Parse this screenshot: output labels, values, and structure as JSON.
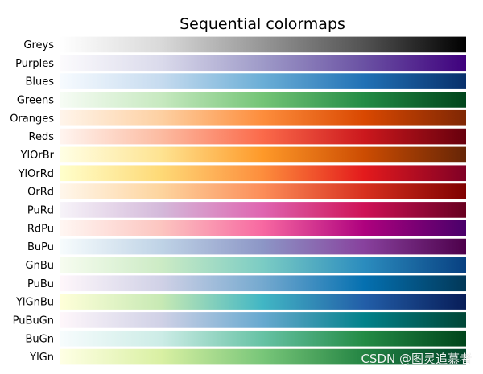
{
  "chart_data": {
    "type": "heatmap",
    "title": "Sequential colormaps",
    "xlabel": "",
    "ylabel": "",
    "grid": false,
    "rows": [
      {
        "name": "Greys",
        "colors": [
          "#ffffff",
          "#d9d9d9",
          "#969696",
          "#525252",
          "#000000"
        ]
      },
      {
        "name": "Purples",
        "colors": [
          "#fcfbfd",
          "#dadaeb",
          "#9e9ac8",
          "#6a51a3",
          "#3f007d"
        ]
      },
      {
        "name": "Blues",
        "colors": [
          "#f7fbff",
          "#c6dbef",
          "#6baed6",
          "#2171b5",
          "#08306b"
        ]
      },
      {
        "name": "Greens",
        "colors": [
          "#f7fcf5",
          "#c7e9c0",
          "#74c476",
          "#238b45",
          "#00441b"
        ]
      },
      {
        "name": "Oranges",
        "colors": [
          "#fff5eb",
          "#fdd0a2",
          "#fd8d3c",
          "#d94801",
          "#7f2704"
        ]
      },
      {
        "name": "Reds",
        "colors": [
          "#fff5f0",
          "#fcbba1",
          "#fb6a4a",
          "#cb181d",
          "#67000d"
        ]
      },
      {
        "name": "YlOrBr",
        "colors": [
          "#ffffe5",
          "#fee391",
          "#fe9929",
          "#cc4c02",
          "#662506"
        ]
      },
      {
        "name": "YlOrRd",
        "colors": [
          "#ffffcc",
          "#fed976",
          "#fd8d3c",
          "#e31a1c",
          "#800026"
        ]
      },
      {
        "name": "OrRd",
        "colors": [
          "#fff7ec",
          "#fdd49e",
          "#fc8d59",
          "#d7301f",
          "#7f0000"
        ]
      },
      {
        "name": "PuRd",
        "colors": [
          "#f7f4f9",
          "#d4b9da",
          "#df65b0",
          "#ce1256",
          "#67001f"
        ]
      },
      {
        "name": "RdPu",
        "colors": [
          "#fff7f3",
          "#fcc5c0",
          "#f768a1",
          "#ae017e",
          "#49006a"
        ]
      },
      {
        "name": "BuPu",
        "colors": [
          "#f7fcfd",
          "#bfd3e6",
          "#8c96c6",
          "#88419d",
          "#4d004b"
        ]
      },
      {
        "name": "GnBu",
        "colors": [
          "#f7fcf0",
          "#ccebc5",
          "#7bccc4",
          "#2b8cbe",
          "#084081"
        ]
      },
      {
        "name": "PuBu",
        "colors": [
          "#fff7fb",
          "#d0d1e6",
          "#74a9cf",
          "#0570b0",
          "#023858"
        ]
      },
      {
        "name": "YlGnBu",
        "colors": [
          "#ffffd9",
          "#c7e9b4",
          "#41b6c4",
          "#225ea8",
          "#081d58"
        ]
      },
      {
        "name": "PuBuGn",
        "colors": [
          "#fff7fb",
          "#d0d1e6",
          "#67a9cf",
          "#02818a",
          "#014636"
        ]
      },
      {
        "name": "BuGn",
        "colors": [
          "#f7fcfd",
          "#ccece6",
          "#66c2a4",
          "#238b45",
          "#00441b"
        ]
      },
      {
        "name": "YlGn",
        "colors": [
          "#ffffe5",
          "#d9f0a3",
          "#78c679",
          "#238443",
          "#004529"
        ]
      }
    ]
  },
  "watermark": "CSDN @图灵追慕者"
}
